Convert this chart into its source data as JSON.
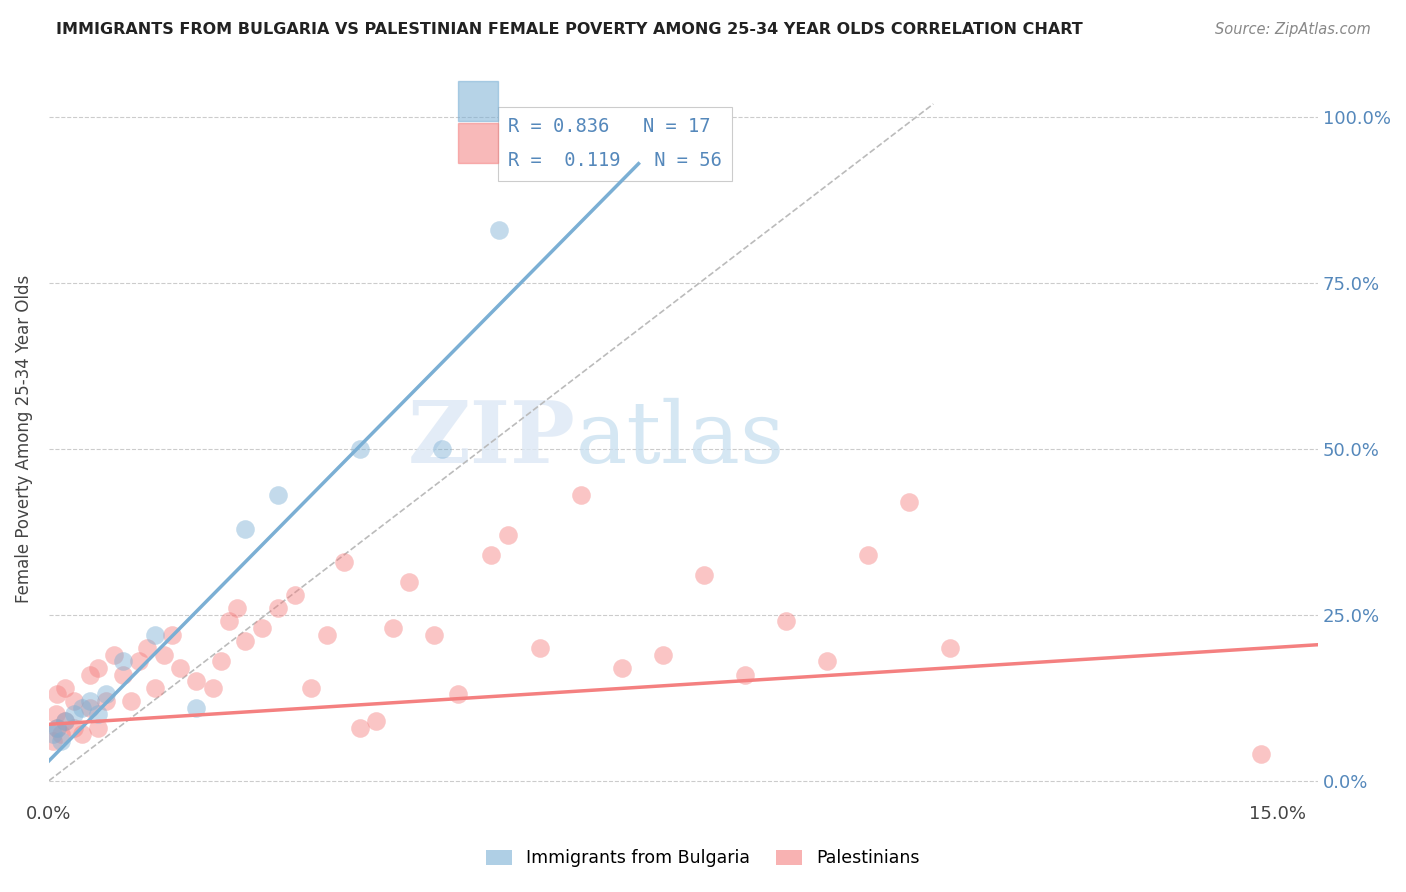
{
  "title": "IMMIGRANTS FROM BULGARIA VS PALESTINIAN FEMALE POVERTY AMONG 25-34 YEAR OLDS CORRELATION CHART",
  "source": "Source: ZipAtlas.com",
  "ylabel": "Female Poverty Among 25-34 Year Olds",
  "legend_label1": "Immigrants from Bulgaria",
  "legend_label2": "Palestinians",
  "legend_r1": "R = 0.836",
  "legend_n1": "N = 17",
  "legend_r2": "R =  0.119",
  "legend_n2": "N = 56",
  "xlim": [
    0.0,
    0.155
  ],
  "ylim": [
    -0.03,
    1.06
  ],
  "yticks": [
    0.0,
    0.25,
    0.5,
    0.75,
    1.0
  ],
  "ytick_labels_right": [
    "0.0%",
    "25.0%",
    "50.0%",
    "75.0%",
    "100.0%"
  ],
  "xticks": [
    0.0,
    0.03,
    0.06,
    0.09,
    0.12,
    0.15
  ],
  "xtick_labels": [
    "0.0%",
    "",
    "",
    "",
    "",
    "15.0%"
  ],
  "color_blue": "#7BAFD4",
  "color_pink": "#F48080",
  "color_title": "#222222",
  "color_right_axis": "#5588BB",
  "bg_color": "#ffffff",
  "blue_scatter_x": [
    0.0005,
    0.001,
    0.0015,
    0.002,
    0.003,
    0.004,
    0.005,
    0.006,
    0.007,
    0.009,
    0.013,
    0.018,
    0.024,
    0.028,
    0.038,
    0.048,
    0.055
  ],
  "blue_scatter_y": [
    0.07,
    0.08,
    0.06,
    0.09,
    0.1,
    0.11,
    0.12,
    0.1,
    0.13,
    0.18,
    0.22,
    0.11,
    0.38,
    0.43,
    0.5,
    0.5,
    0.83
  ],
  "pink_scatter_x": [
    0.0005,
    0.0008,
    0.001,
    0.001,
    0.0015,
    0.002,
    0.002,
    0.003,
    0.003,
    0.004,
    0.005,
    0.005,
    0.006,
    0.006,
    0.007,
    0.008,
    0.009,
    0.01,
    0.011,
    0.012,
    0.013,
    0.014,
    0.015,
    0.016,
    0.018,
    0.02,
    0.021,
    0.022,
    0.023,
    0.024,
    0.026,
    0.028,
    0.03,
    0.032,
    0.034,
    0.036,
    0.038,
    0.04,
    0.042,
    0.044,
    0.047,
    0.05,
    0.054,
    0.056,
    0.06,
    0.065,
    0.07,
    0.075,
    0.08,
    0.085,
    0.09,
    0.095,
    0.1,
    0.105,
    0.11,
    0.148
  ],
  "pink_scatter_y": [
    0.06,
    0.1,
    0.08,
    0.13,
    0.07,
    0.09,
    0.14,
    0.08,
    0.12,
    0.07,
    0.11,
    0.16,
    0.08,
    0.17,
    0.12,
    0.19,
    0.16,
    0.12,
    0.18,
    0.2,
    0.14,
    0.19,
    0.22,
    0.17,
    0.15,
    0.14,
    0.18,
    0.24,
    0.26,
    0.21,
    0.23,
    0.26,
    0.28,
    0.14,
    0.22,
    0.33,
    0.08,
    0.09,
    0.23,
    0.3,
    0.22,
    0.13,
    0.34,
    0.37,
    0.2,
    0.43,
    0.17,
    0.19,
    0.31,
    0.16,
    0.24,
    0.18,
    0.34,
    0.42,
    0.2,
    0.04
  ],
  "blue_trend_x": [
    0.0,
    0.072
  ],
  "blue_trend_y": [
    0.03,
    0.93
  ],
  "pink_trend_x": [
    0.0,
    0.155
  ],
  "pink_trend_y": [
    0.085,
    0.205
  ],
  "ref_line_x": [
    0.0,
    0.108
  ],
  "ref_line_y": [
    0.0,
    1.02
  ],
  "watermark_zip": "ZIP",
  "watermark_atlas": "atlas"
}
